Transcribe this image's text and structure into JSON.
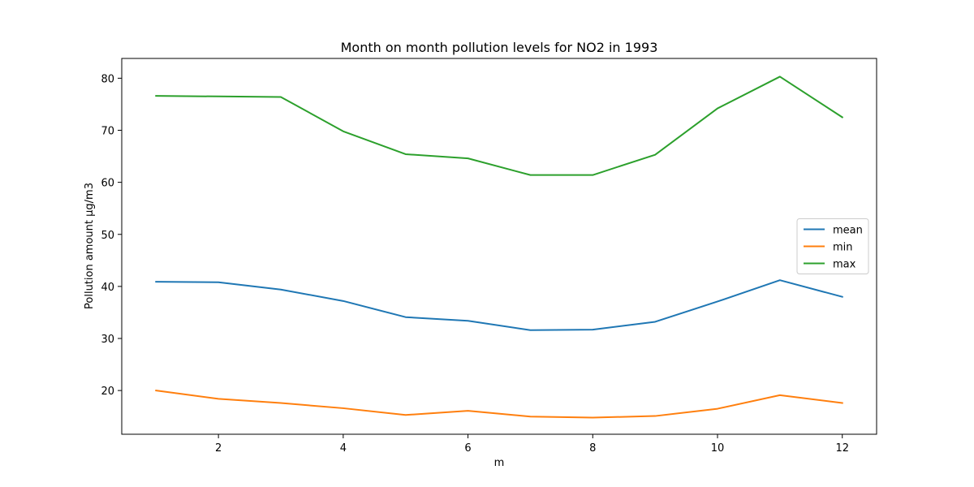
{
  "chart_data": {
    "type": "line",
    "title": "Month on month pollution levels for NO2 in 1993",
    "xlabel": "m",
    "ylabel": "Pollution amount µg/m3",
    "x": [
      1,
      2,
      3,
      4,
      5,
      6,
      7,
      8,
      9,
      10,
      11,
      12
    ],
    "xlim": [
      0.45,
      12.55
    ],
    "ylim": [
      11.6,
      83.8
    ],
    "xticks": [
      2,
      4,
      6,
      8,
      10,
      12
    ],
    "yticks": [
      20,
      30,
      40,
      50,
      60,
      70,
      80
    ],
    "grid": false,
    "legend_position": "center-right",
    "series": [
      {
        "name": "mean",
        "color": "#1f77b4",
        "values": [
          40.9,
          40.8,
          39.4,
          37.2,
          34.1,
          33.4,
          31.6,
          31.7,
          33.2,
          37.1,
          41.2,
          38.0
        ]
      },
      {
        "name": "min",
        "color": "#ff7f0e",
        "values": [
          20.0,
          18.4,
          17.6,
          16.6,
          15.3,
          16.1,
          15.0,
          14.8,
          15.1,
          16.5,
          19.1,
          17.6
        ]
      },
      {
        "name": "max",
        "color": "#2ca02c",
        "values": [
          76.6,
          76.5,
          76.4,
          69.8,
          65.4,
          64.6,
          61.4,
          61.4,
          65.3,
          74.2,
          80.3,
          72.5
        ]
      }
    ]
  }
}
